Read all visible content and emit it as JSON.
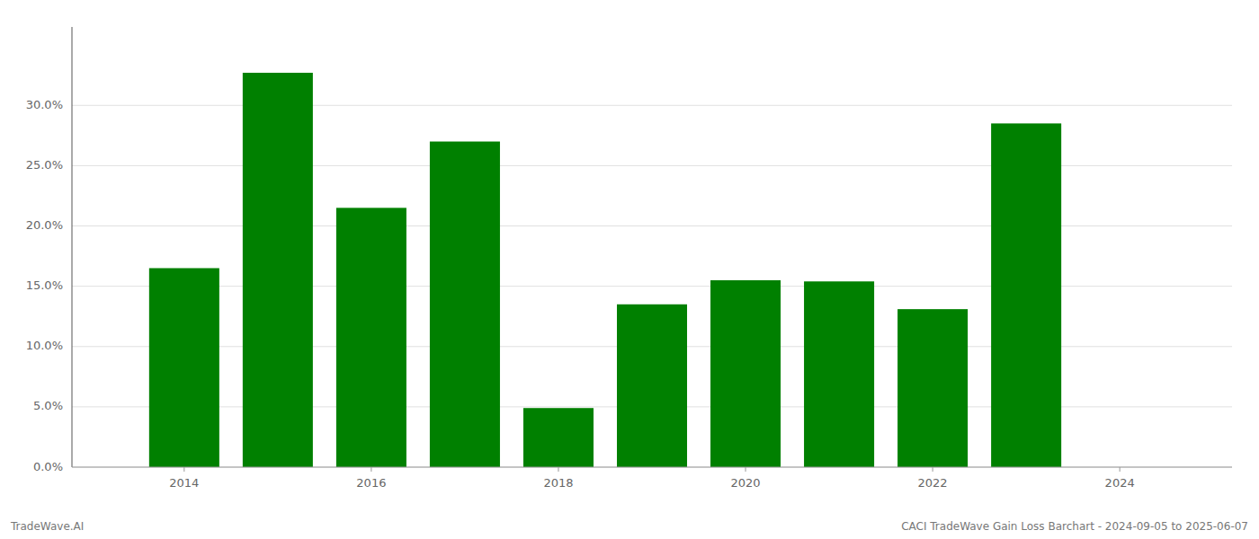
{
  "chart_data": {
    "type": "bar",
    "x": [
      2014,
      2015,
      2016,
      2017,
      2018,
      2019,
      2020,
      2021,
      2022,
      2023
    ],
    "values": [
      0.165,
      0.327,
      0.215,
      0.27,
      0.049,
      0.135,
      0.155,
      0.154,
      0.131,
      0.285
    ],
    "color": "#008000",
    "xlim": [
      2012.8,
      2025.2
    ],
    "ylim": [
      0.0,
      0.365
    ],
    "xticks": [
      2014,
      2016,
      2018,
      2020,
      2022,
      2024
    ],
    "yticks": [
      {
        "value": 0.0,
        "label": "0.0%"
      },
      {
        "value": 0.05,
        "label": "5.0%"
      },
      {
        "value": 0.1,
        "label": "10.0%"
      },
      {
        "value": 0.15,
        "label": "15.0%"
      },
      {
        "value": 0.2,
        "label": "20.0%"
      },
      {
        "value": 0.25,
        "label": "25.0%"
      },
      {
        "value": 0.3,
        "label": "30.0%"
      }
    ],
    "grid": true,
    "annotations": [
      "TradeWave.AI",
      "CACI TradeWave Gain Loss Barchart - 2024-09-05 to 2025-06-07"
    ]
  }
}
